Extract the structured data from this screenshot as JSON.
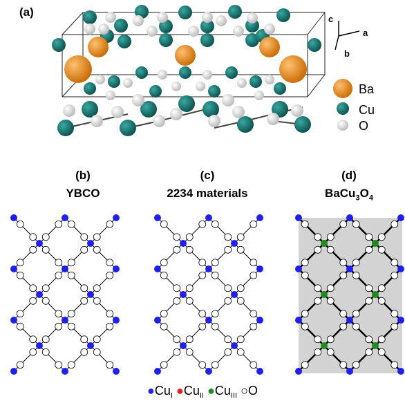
{
  "panels": {
    "a": {
      "label": "(a)"
    },
    "b": {
      "label": "(b)",
      "title": "YBCO"
    },
    "c": {
      "label": "(c)",
      "title": "2234 materials"
    },
    "d": {
      "label": "(d)",
      "title_main": "BaCu",
      "title_sub": "3",
      "title_end": "O",
      "title_sub2": "4"
    }
  },
  "axes": {
    "c": "c",
    "a": "a",
    "b": "b"
  },
  "legend_a": [
    {
      "name": "Ba",
      "color": "#e8891a"
    },
    {
      "name": "Cu",
      "color": "#12706b"
    },
    {
      "name": "O",
      "color": "#e6e6e6"
    }
  ],
  "legend_bottom": [
    {
      "symbol": "●",
      "color": "#1f1ff0",
      "text": "Cu",
      "sub": "I"
    },
    {
      "symbol": "●",
      "color": "#ee1c1c",
      "text": "Cu",
      "sub": "II"
    },
    {
      "symbol": "●",
      "color": "#1c8c1c",
      "text": "Cu",
      "sub": "III"
    },
    {
      "symbol": "○",
      "color": "#000000",
      "text": "O",
      "sub": ""
    }
  ]
}
